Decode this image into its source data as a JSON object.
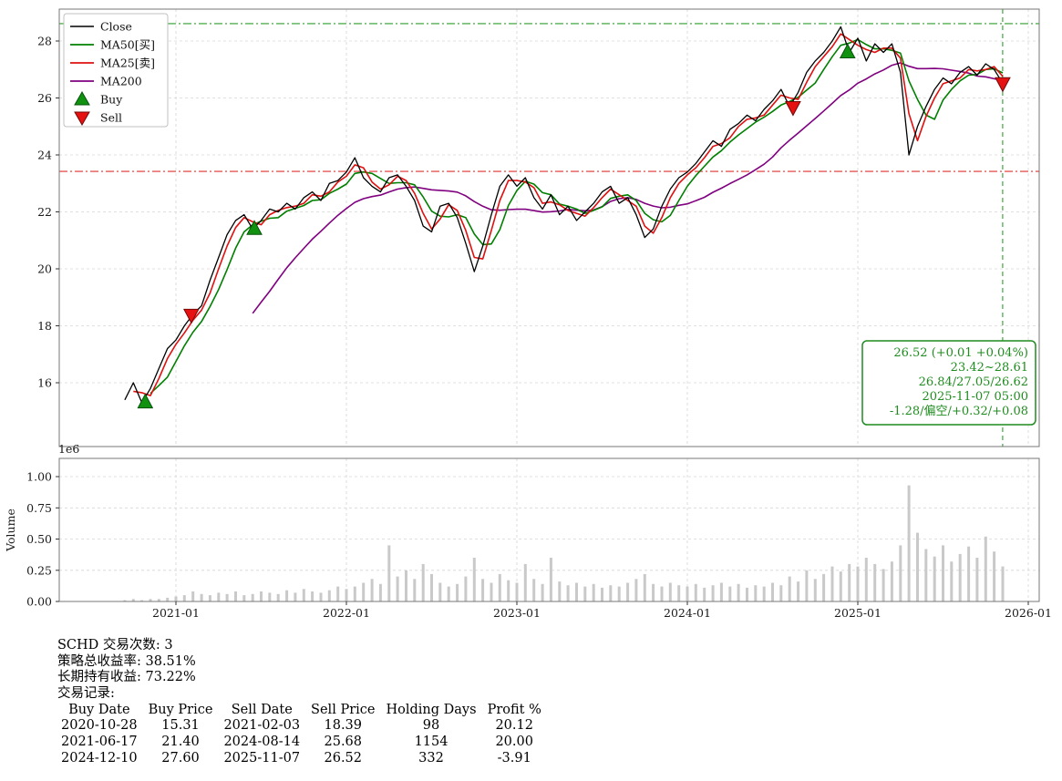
{
  "chart_data": {
    "type": "line",
    "x_start": 2020.7,
    "x_step": 0.05,
    "xlim": [
      2020.32,
      2026.07
    ],
    "ylim": [
      13.8,
      29.1
    ],
    "grid": true,
    "close": [
      15.4,
      16.0,
      15.3,
      15.8,
      16.5,
      17.2,
      17.5,
      18.0,
      18.4,
      18.7,
      19.6,
      20.4,
      21.2,
      21.7,
      21.9,
      21.4,
      21.7,
      22.1,
      22.0,
      22.3,
      22.1,
      22.5,
      22.7,
      22.4,
      23.0,
      23.1,
      23.4,
      23.9,
      23.2,
      22.9,
      22.7,
      23.2,
      23.3,
      22.9,
      22.4,
      21.5,
      21.3,
      22.2,
      22.3,
      21.8,
      20.9,
      19.9,
      20.8,
      21.9,
      22.9,
      23.3,
      22.9,
      23.2,
      22.5,
      22.1,
      22.6,
      21.9,
      22.2,
      21.7,
      22.0,
      22.3,
      22.7,
      22.9,
      22.3,
      22.5,
      21.9,
      21.1,
      21.4,
      22.2,
      22.8,
      23.2,
      23.4,
      23.7,
      24.1,
      24.5,
      24.3,
      24.9,
      25.1,
      25.4,
      25.2,
      25.6,
      25.9,
      26.3,
      25.7,
      26.2,
      26.9,
      27.3,
      27.6,
      28.0,
      28.5,
      27.6,
      28.1,
      27.3,
      27.9,
      27.6,
      27.9,
      26.9,
      24.0,
      25.0,
      25.7,
      26.3,
      26.7,
      26.5,
      26.9,
      27.1,
      26.8,
      27.2,
      27.0,
      26.52
    ],
    "series": [
      {
        "name": "MA50[买]",
        "color": "#008000",
        "window": 4
      },
      {
        "name": "MA25[卖]",
        "color": "#e01010",
        "window": 2
      },
      {
        "name": "MA200",
        "color": "#800080",
        "window": 16
      }
    ],
    "volume": [
      0.01,
      0.02,
      0.01,
      0.02,
      0.02,
      0.03,
      0.04,
      0.05,
      0.08,
      0.06,
      0.05,
      0.07,
      0.06,
      0.08,
      0.05,
      0.06,
      0.08,
      0.07,
      0.06,
      0.09,
      0.07,
      0.1,
      0.08,
      0.07,
      0.09,
      0.12,
      0.1,
      0.12,
      0.15,
      0.18,
      0.14,
      0.45,
      0.2,
      0.25,
      0.18,
      0.3,
      0.22,
      0.15,
      0.12,
      0.14,
      0.2,
      0.35,
      0.18,
      0.15,
      0.22,
      0.17,
      0.15,
      0.3,
      0.18,
      0.14,
      0.35,
      0.16,
      0.13,
      0.15,
      0.12,
      0.14,
      0.11,
      0.13,
      0.12,
      0.15,
      0.18,
      0.22,
      0.14,
      0.12,
      0.15,
      0.13,
      0.12,
      0.14,
      0.11,
      0.13,
      0.15,
      0.12,
      0.14,
      0.11,
      0.13,
      0.12,
      0.15,
      0.13,
      0.2,
      0.16,
      0.25,
      0.18,
      0.22,
      0.28,
      0.24,
      0.3,
      0.28,
      0.35,
      0.3,
      0.26,
      0.32,
      0.45,
      0.93,
      0.55,
      0.42,
      0.36,
      0.45,
      0.32,
      0.38,
      0.44,
      0.35,
      0.52,
      0.4,
      0.28
    ],
    "buy_markers": [
      {
        "t": 2020.82,
        "price": 15.31,
        "date": "2020-10-28"
      },
      {
        "t": 2021.46,
        "price": 21.4,
        "date": "2021-06-17"
      },
      {
        "t": 2024.94,
        "price": 27.6,
        "date": "2024-12-10"
      }
    ],
    "sell_markers": [
      {
        "t": 2021.09,
        "price": 18.39,
        "date": "2021-02-03"
      },
      {
        "t": 2024.62,
        "price": 25.68,
        "date": "2024-08-14"
      },
      {
        "t": 2025.85,
        "price": 26.52,
        "date": "2025-11-07"
      }
    ],
    "hlines": [
      {
        "value": 28.61,
        "color": "#2e9e2e",
        "style": "dashdot"
      },
      {
        "value": 23.42,
        "color": "#e03030",
        "style": "dashdot"
      }
    ],
    "vline": {
      "t": 2025.85,
      "color": "#2e9e2e",
      "style": "dashed"
    },
    "price_ticks": [
      16,
      18,
      20,
      22,
      24,
      26,
      28
    ],
    "x_ticks": [
      {
        "t": 2021.0,
        "label": "2021-01"
      },
      {
        "t": 2022.0,
        "label": "2022-01"
      },
      {
        "t": 2023.0,
        "label": "2023-01"
      },
      {
        "t": 2024.0,
        "label": "2024-01"
      },
      {
        "t": 2025.0,
        "label": "2025-01"
      },
      {
        "t": 2026.0,
        "label": "2026-01"
      }
    ],
    "volume_ticks": [
      {
        "v": 0.0,
        "label": "0.00"
      },
      {
        "v": 0.25,
        "label": "0.25"
      },
      {
        "v": 0.5,
        "label": "0.50"
      },
      {
        "v": 0.75,
        "label": "0.75"
      },
      {
        "v": 1.0,
        "label": "1.00"
      }
    ],
    "volume_offset_label": "1e6",
    "volume_axis_label": "Volume",
    "legend": [
      {
        "label": "Close",
        "type": "line",
        "color": "#000000"
      },
      {
        "label": "MA50[买]",
        "type": "line",
        "color": "#008000"
      },
      {
        "label": "MA25[卖]",
        "type": "line",
        "color": "#e01010"
      },
      {
        "label": "MA200",
        "type": "line",
        "color": "#800080"
      },
      {
        "label": "Buy",
        "type": "triangle-up",
        "color": "#109210"
      },
      {
        "label": "Sell",
        "type": "triangle-down",
        "color": "#e61212"
      }
    ],
    "info_box": {
      "color": "#1f8c1f",
      "lines": [
        "26.52 (+0.01 +0.04%)",
        "23.42~28.61",
        "26.84/27.05/26.62",
        "2025-11-07 05:00",
        "-1.28/偏空/+0.32/+0.08"
      ]
    }
  },
  "summary": {
    "line1": "SCHD 交易次数: 3",
    "line2": "策略总收益率: 38.51%",
    "line3": "长期持有收益: 73.22%",
    "line4": "交易记录:",
    "table": {
      "headers": [
        "Buy Date",
        "Buy Price",
        "Sell Date",
        "Sell Price",
        "Holding Days",
        "Profit %"
      ],
      "rows": [
        [
          "2020-10-28",
          "15.31",
          "2021-02-03",
          "18.39",
          "98",
          "20.12"
        ],
        [
          "2021-06-17",
          "21.40",
          "2024-08-14",
          "25.68",
          "1154",
          "20.00"
        ],
        [
          "2024-12-10",
          "27.60",
          "2025-11-07",
          "26.52",
          "332",
          "-3.91"
        ]
      ]
    }
  }
}
